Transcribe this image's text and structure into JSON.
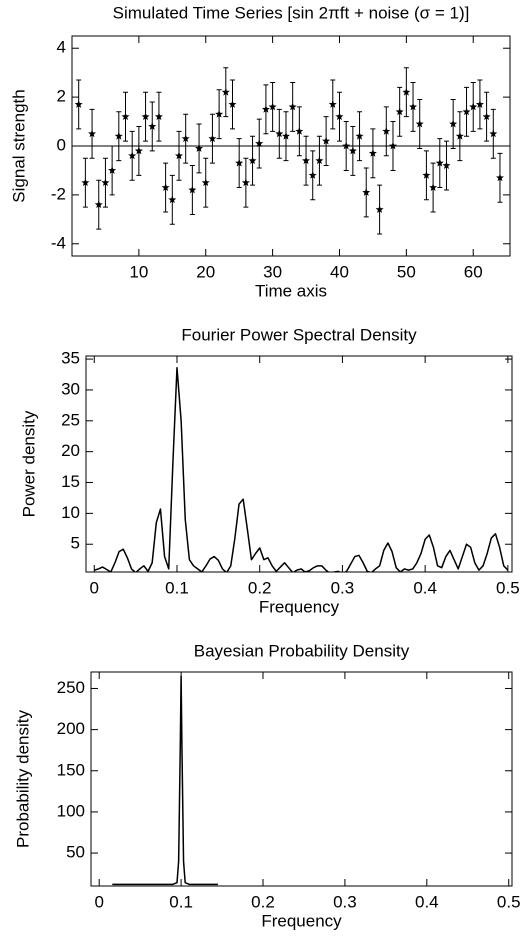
{
  "chart_data": [
    {
      "type": "errorbar",
      "title": "Simulated Time Series [sin 2πft + noise (σ = 1)]",
      "xlabel": "Time axis",
      "ylabel": "Signal strength",
      "x": [
        1,
        2,
        3,
        4,
        5,
        6,
        7,
        8,
        9,
        10,
        11,
        12,
        13,
        14,
        15,
        16,
        17,
        18,
        19,
        20,
        21,
        22,
        23,
        24,
        25,
        26,
        27,
        28,
        29,
        30,
        31,
        32,
        33,
        34,
        35,
        36,
        37,
        38,
        39,
        40,
        41,
        42,
        43,
        44,
        45,
        46,
        47,
        48,
        49,
        50,
        51,
        52,
        53,
        54,
        55,
        56,
        57,
        58,
        59,
        60,
        61,
        62,
        63,
        64
      ],
      "values": [
        1.7,
        -1.5,
        0.5,
        -2.4,
        -1.5,
        -1.0,
        0.4,
        1.2,
        -0.4,
        -0.2,
        1.2,
        0.8,
        1.2,
        -1.7,
        -2.2,
        -0.4,
        0.3,
        -1.8,
        -0.1,
        -1.5,
        0.3,
        1.3,
        2.2,
        1.7,
        -0.7,
        -1.5,
        -0.6,
        0.1,
        1.5,
        1.6,
        0.5,
        0.4,
        1.6,
        0.6,
        -0.6,
        -1.2,
        -0.6,
        0.2,
        1.7,
        1.2,
        0,
        -0.2,
        0.4,
        -1.9,
        -0.3,
        -2.6,
        0.6,
        0,
        1.4,
        2.2,
        1.6,
        0.9,
        -1.2,
        -1.7,
        -0.7,
        -0.8,
        0.9,
        0.4,
        1.4,
        1.6,
        1.7,
        1.2,
        0.5,
        -1.3
      ],
      "errors": [
        1,
        1,
        1,
        1,
        1,
        1,
        1,
        1,
        1,
        1,
        1,
        1,
        1,
        1,
        1,
        1,
        1,
        1,
        1,
        1,
        1,
        1,
        1,
        1,
        1,
        1,
        1,
        1,
        1,
        1,
        1,
        1,
        1,
        1,
        1,
        1,
        1,
        1,
        1,
        1,
        1,
        1,
        1,
        1,
        1,
        1,
        1,
        1,
        1,
        1,
        1,
        1,
        1,
        1,
        1,
        1,
        1,
        1,
        1,
        1,
        1,
        1,
        1,
        1
      ],
      "color": "#000000",
      "zero_line": true,
      "xlim": [
        0,
        65.5
      ],
      "ylim": [
        -4.5,
        4.5
      ],
      "xticks": [
        10,
        20,
        30,
        40,
        50,
        60
      ],
      "yticks": [
        -4,
        -2,
        0,
        2,
        4
      ]
    },
    {
      "type": "line",
      "title": "Fourier Power Spectral Density",
      "xlabel": "Frequency",
      "ylabel": "Power density",
      "x": [
        0,
        0.005,
        0.01,
        0.015,
        0.02,
        0.025,
        0.03,
        0.035,
        0.04,
        0.045,
        0.05,
        0.055,
        0.06,
        0.065,
        0.07,
        0.075,
        0.08,
        0.085,
        0.09,
        0.095,
        0.1,
        0.105,
        0.11,
        0.115,
        0.12,
        0.125,
        0.13,
        0.135,
        0.14,
        0.145,
        0.15,
        0.155,
        0.16,
        0.165,
        0.17,
        0.175,
        0.18,
        0.185,
        0.19,
        0.195,
        0.2,
        0.205,
        0.21,
        0.215,
        0.22,
        0.225,
        0.23,
        0.235,
        0.24,
        0.245,
        0.25,
        0.255,
        0.26,
        0.265,
        0.27,
        0.275,
        0.28,
        0.285,
        0.29,
        0.295,
        0.3,
        0.305,
        0.31,
        0.315,
        0.32,
        0.325,
        0.33,
        0.335,
        0.34,
        0.345,
        0.35,
        0.355,
        0.36,
        0.365,
        0.37,
        0.375,
        0.38,
        0.385,
        0.39,
        0.395,
        0.4,
        0.405,
        0.41,
        0.415,
        0.42,
        0.425,
        0.43,
        0.435,
        0.44,
        0.445,
        0.45,
        0.455,
        0.46,
        0.465,
        0.47,
        0.475,
        0.48,
        0.485,
        0.49,
        0.495,
        0.5
      ],
      "values": [
        0.8,
        1.0,
        1.3,
        0.9,
        0.5,
        2.0,
        3.8,
        4.2,
        2.8,
        1.0,
        0.4,
        1.0,
        1.5,
        0.6,
        2.0,
        8.5,
        10.7,
        3.0,
        1.0,
        18,
        33.6,
        25,
        9,
        2.5,
        1.5,
        1.0,
        0.5,
        1.5,
        2.6,
        3.0,
        2.4,
        1.0,
        0.4,
        1.5,
        6.0,
        11.5,
        12.3,
        7.5,
        2.5,
        3.5,
        4.4,
        2.5,
        2.8,
        1.5,
        0.6,
        1.3,
        2.0,
        1.2,
        0.4,
        0.8,
        1.0,
        0.5,
        0.7,
        1.2,
        1.5,
        1.5,
        0.8,
        0.3,
        0.5,
        0.6,
        0.3,
        0.6,
        1.8,
        3.0,
        3.2,
        2.0,
        0.6,
        0.4,
        1.0,
        1.5,
        4.0,
        5.2,
        3.8,
        1.2,
        0.5,
        1.0,
        0.8,
        1.0,
        2.0,
        3.5,
        5.8,
        6.5,
        4.5,
        1.5,
        1.2,
        3.0,
        4.0,
        2.5,
        1.0,
        3.0,
        5.0,
        4.5,
        2.0,
        0.8,
        1.5,
        3.5,
        6.0,
        6.7,
        4.5,
        1.5,
        0.8
      ],
      "color": "#000000",
      "xlim": [
        -0.01,
        0.505
      ],
      "ylim": [
        0.5,
        35.5
      ],
      "xticks": [
        0,
        0.1,
        0.2,
        0.3,
        0.4,
        0.5
      ],
      "yticks": [
        5,
        10,
        15,
        20,
        25,
        30,
        35
      ]
    },
    {
      "type": "line",
      "title": "Bayesian Probability Density",
      "xlabel": "Frequency",
      "ylabel": "Probability density",
      "x": [
        0.016,
        0.09,
        0.095,
        0.097,
        0.099,
        0.1,
        0.101,
        0.103,
        0.105,
        0.11,
        0.145
      ],
      "values": [
        12,
        12,
        14,
        40,
        180,
        265,
        180,
        40,
        14,
        12,
        12
      ],
      "color": "#000000",
      "xlim": [
        -0.01,
        0.504
      ],
      "ylim": [
        10,
        270
      ],
      "xticks": [
        0,
        0.1,
        0.2,
        0.3,
        0.4,
        0.5
      ],
      "yticks": [
        50,
        100,
        150,
        200,
        250
      ]
    }
  ]
}
